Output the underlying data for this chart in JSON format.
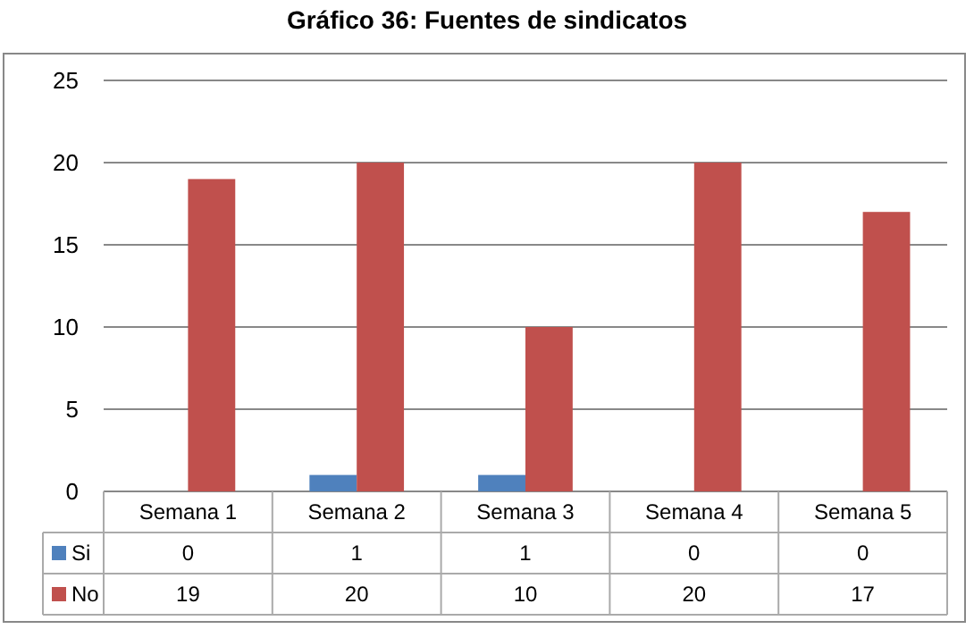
{
  "chart_data": {
    "type": "bar",
    "title": "Gráfico 36: Fuentes de sindicatos",
    "categories": [
      "Semana 1",
      "Semana 2",
      "Semana 3",
      "Semana 4",
      "Semana 5"
    ],
    "series": [
      {
        "name": "Si",
        "color": "#4f81bd",
        "values": [
          0,
          1,
          1,
          0,
          0
        ]
      },
      {
        "name": "No",
        "color": "#c0504d",
        "values": [
          19,
          20,
          10,
          20,
          17
        ]
      }
    ],
    "ylim": [
      0,
      25
    ],
    "yticks": [
      0,
      5,
      10,
      15,
      20,
      25
    ],
    "grid": "y",
    "legend": "bottom",
    "data_labels": true
  }
}
